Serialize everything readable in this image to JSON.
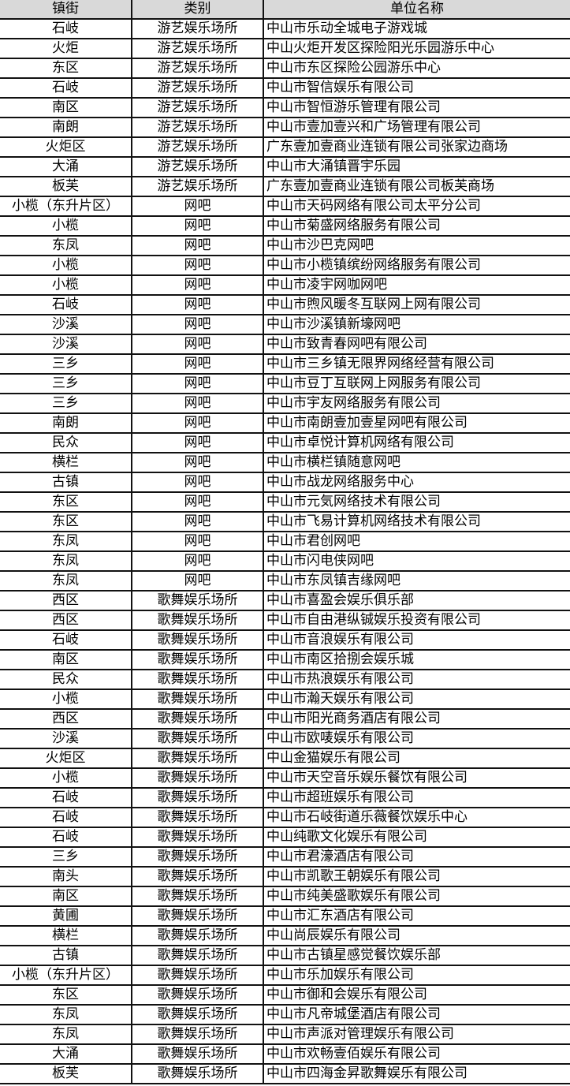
{
  "table": {
    "headers": [
      "镇街",
      "类别",
      "单位名称"
    ],
    "rows": [
      [
        "石岐",
        "游艺娱乐场所",
        "中山市乐动全城电子游戏城"
      ],
      [
        "火炬",
        "游艺娱乐场所",
        "中山火炬开发区探险阳光乐园游乐中心"
      ],
      [
        "东区",
        "游艺娱乐场所",
        "中山市东区探险公园游乐中心"
      ],
      [
        "石岐",
        "游艺娱乐场所",
        "中山市智信娱乐有限公司"
      ],
      [
        "南区",
        "游艺娱乐场所",
        "中山市智恒游乐管理有限公司"
      ],
      [
        "南朗",
        "游艺娱乐场所",
        "中山市壹加壹兴和广场管理有限公司"
      ],
      [
        "火炬区",
        "游艺娱乐场所",
        "广东壹加壹商业连锁有限公司张家边商场"
      ],
      [
        "大涌",
        "游艺娱乐场所",
        "中山市大涌镇晋宇乐园"
      ],
      [
        "板芙",
        "游艺娱乐场所",
        "广东壹加壹商业连锁有限公司板芙商场"
      ],
      [
        "小榄（东升片区）",
        "网吧",
        "中山市天码网络有限公司太平分公司"
      ],
      [
        "小榄",
        "网吧",
        "中山市菊盛网络服务有限公司"
      ],
      [
        "东凤",
        "网吧",
        "中山市沙巴克网吧"
      ],
      [
        "小榄",
        "网吧",
        "中山市小榄镇缤纷网络服务有限公司"
      ],
      [
        "小榄",
        "网吧",
        "中山市凌宇网咖网吧"
      ],
      [
        "石岐",
        "网吧",
        "中山市煦风暖冬互联网上网有限公司"
      ],
      [
        "沙溪",
        "网吧",
        "中山市沙溪镇新壕网吧"
      ],
      [
        "沙溪",
        "网吧",
        "中山市致青春网吧有限公司"
      ],
      [
        "三乡",
        "网吧",
        "中山市三乡镇无限界网络经营有限公司"
      ],
      [
        "三乡",
        "网吧",
        "中山市豆丁互联网上网服务有限公司"
      ],
      [
        "三乡",
        "网吧",
        "中山市宇友网络服务有限公司"
      ],
      [
        "南朗",
        "网吧",
        "中山市南朗壹加壹星网吧有限公司"
      ],
      [
        "民众",
        "网吧",
        "中山市卓悦计算机网络有限公司"
      ],
      [
        "横栏",
        "网吧",
        "中山市横栏镇随意网吧"
      ],
      [
        "古镇",
        "网吧",
        "中山市战龙网络服务中心"
      ],
      [
        "东区",
        "网吧",
        "中山市元気网络技术有限公司"
      ],
      [
        "东区",
        "网吧",
        "中山市飞易计算机网络技术有限公司"
      ],
      [
        "东凤",
        "网吧",
        "中山市君创网吧"
      ],
      [
        "东凤",
        "网吧",
        "中山市闪电侠网吧"
      ],
      [
        "东凤",
        "网吧",
        "中山市东凤镇吉缘网吧"
      ],
      [
        "西区",
        "歌舞娱乐场所",
        "中山市喜盈会娱乐俱乐部"
      ],
      [
        "西区",
        "歌舞娱乐场所",
        "中山市自由港纵铖娱乐投资有限公司"
      ],
      [
        "石岐",
        "歌舞娱乐场所",
        "中山市音浪娱乐有限公司"
      ],
      [
        "南区",
        "歌舞娱乐场所",
        "中山市南区拾捌会娱乐城"
      ],
      [
        "民众",
        "歌舞娱乐场所",
        "中山市热浪娱乐有限公司"
      ],
      [
        "小榄",
        "歌舞娱乐场所",
        "中山市瀚天娱乐有限公司"
      ],
      [
        "西区",
        "歌舞娱乐场所",
        "中山市阳光商务酒店有限公司"
      ],
      [
        "沙溪",
        "歌舞娱乐场所",
        "中山市欧唛娱乐有限公司"
      ],
      [
        "火炬区",
        "歌舞娱乐场所",
        "中山金猫娱乐有限公司"
      ],
      [
        "小榄",
        "歌舞娱乐场所",
        "中山市天空音乐娱乐餐饮有限公司"
      ],
      [
        "石岐",
        "歌舞娱乐场所",
        "中山市超班娱乐有限公司"
      ],
      [
        "石岐",
        "歌舞娱乐场所",
        "中山市石岐街道乐薇餐饮娱乐中心"
      ],
      [
        "石岐",
        "歌舞娱乐场所",
        "中山纯歌文化娱乐有限公司"
      ],
      [
        "三乡",
        "歌舞娱乐场所",
        "中山市君濠酒店有限公司"
      ],
      [
        "南头",
        "歌舞娱乐场所",
        "中山市凯歌王朝娱乐有限公司"
      ],
      [
        "南区",
        "歌舞娱乐场所",
        "中山市纯美盛歌娱乐有限公司"
      ],
      [
        "黄圃",
        "歌舞娱乐场所",
        "中山市汇东酒店有限公司"
      ],
      [
        "横栏",
        "歌舞娱乐场所",
        "中山尚辰娱乐有限公司"
      ],
      [
        "古镇",
        "歌舞娱乐场所",
        "中山市古镇星感觉餐饮娱乐部"
      ],
      [
        "小榄（东升片区）",
        "歌舞娱乐场所",
        "中山市乐加娱乐有限公司"
      ],
      [
        "东区",
        "歌舞娱乐场所",
        "中山市御和会娱乐有限公司"
      ],
      [
        "东凤",
        "歌舞娱乐场所",
        "中山市凡帝城堡酒店有限公司"
      ],
      [
        "东凤",
        "歌舞娱乐场所",
        "中山市声派对管理娱乐有限公司"
      ],
      [
        "大涌",
        "歌舞娱乐场所",
        "中山市欢畅壹佰娱乐有限公司"
      ],
      [
        "板芙",
        "歌舞娱乐场所",
        "中山市四海金昇歌舞娱乐有限公司"
      ]
    ]
  }
}
